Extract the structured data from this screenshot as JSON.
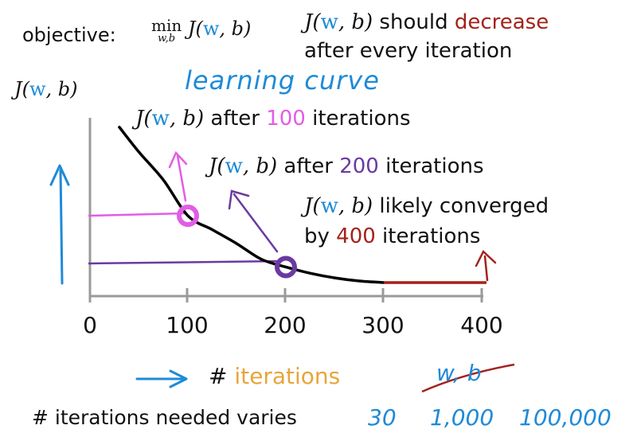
{
  "objective": {
    "label": "objective:",
    "min_word": "min",
    "min_sub": "w,b",
    "func": "J(",
    "w": "w",
    "b": ", b)"
  },
  "decrease_note": {
    "func": "J(",
    "w": "w",
    "b": ", b)",
    "text1": " should ",
    "highlight": "decrease",
    "line2": "after every iteration"
  },
  "y_axis_label": {
    "func": "J(",
    "w": "w",
    "b": ", b)"
  },
  "learning_curve_title": "learning curve",
  "annotations": {
    "a100": {
      "func": "J(",
      "w": "w",
      "b": ", b)",
      "pre": " after ",
      "num": "100",
      "post": " iterations"
    },
    "a200": {
      "func": "J(",
      "w": "w",
      "b": ", b)",
      "pre": " after ",
      "num": "200",
      "post": " iterations"
    },
    "a400": {
      "func": "J(",
      "w": "w",
      "b": ", b)",
      "line1": " likely converged",
      "pre": "by ",
      "num": "400",
      "post": " iterations"
    }
  },
  "x_ticks": [
    "0",
    "100",
    "200",
    "300",
    "400"
  ],
  "x_label": {
    "hash": "# ",
    "word": "iterations"
  },
  "struck_text": "w, b",
  "bottom_note": "# iterations needed varies",
  "varies_values": [
    "30",
    "1,000",
    "100,000"
  ],
  "colors": {
    "blue": "#1f8ad8",
    "pink": "#e35ce6",
    "purple": "#6a3aa0",
    "red": "#a3221b",
    "orange": "#e7a53a",
    "curve": "#000000",
    "axis": "#9a9a9a"
  },
  "chart_data": {
    "type": "line",
    "x": [
      30,
      50,
      75,
      100,
      125,
      150,
      175,
      200,
      225,
      250,
      275,
      300,
      350,
      400
    ],
    "y": [
      1.0,
      0.84,
      0.66,
      0.43,
      0.34,
      0.25,
      0.15,
      0.1,
      0.06,
      0.03,
      0.01,
      0.0,
      0.0,
      0.0
    ],
    "converged_from": 300,
    "marked_points": [
      {
        "x": 100,
        "y": 0.43
      },
      {
        "x": 200,
        "y": 0.1
      }
    ],
    "xlim": [
      0,
      400
    ],
    "ylim": [
      0,
      1.05
    ],
    "xlabel": "# iterations",
    "ylabel": "J(w, b)",
    "title": "learning curve",
    "grid": false
  }
}
